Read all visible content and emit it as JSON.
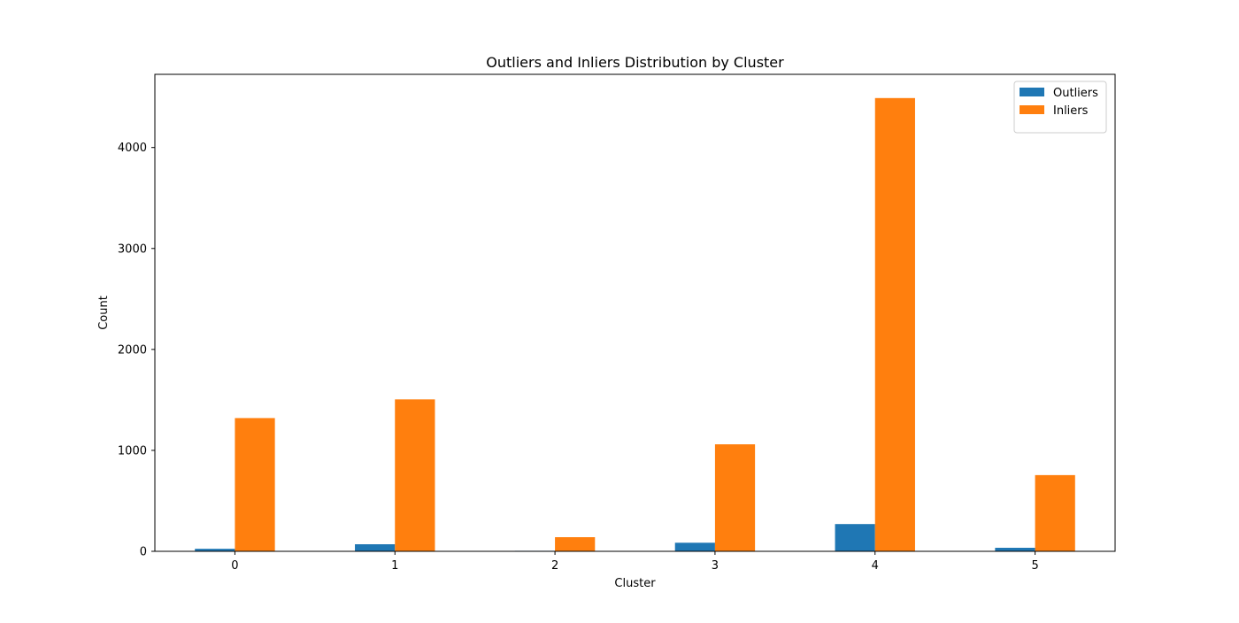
{
  "chart_data": {
    "type": "bar",
    "title": "Outliers and Inliers Distribution by Cluster",
    "xlabel": "Cluster",
    "ylabel": "Count",
    "categories": [
      "0",
      "1",
      "2",
      "3",
      "4",
      "5"
    ],
    "series": [
      {
        "name": "Outliers",
        "color": "#1f77b4",
        "values": [
          25,
          70,
          5,
          85,
          270,
          35
        ]
      },
      {
        "name": "Inliers",
        "color": "#ff7f0e",
        "values": [
          1320,
          1505,
          140,
          1060,
          4490,
          755
        ]
      }
    ],
    "ylim": [
      0,
      4725
    ],
    "yticks": [
      0,
      1000,
      2000,
      3000,
      4000
    ],
    "grid": false,
    "legend_position": "top-right"
  }
}
